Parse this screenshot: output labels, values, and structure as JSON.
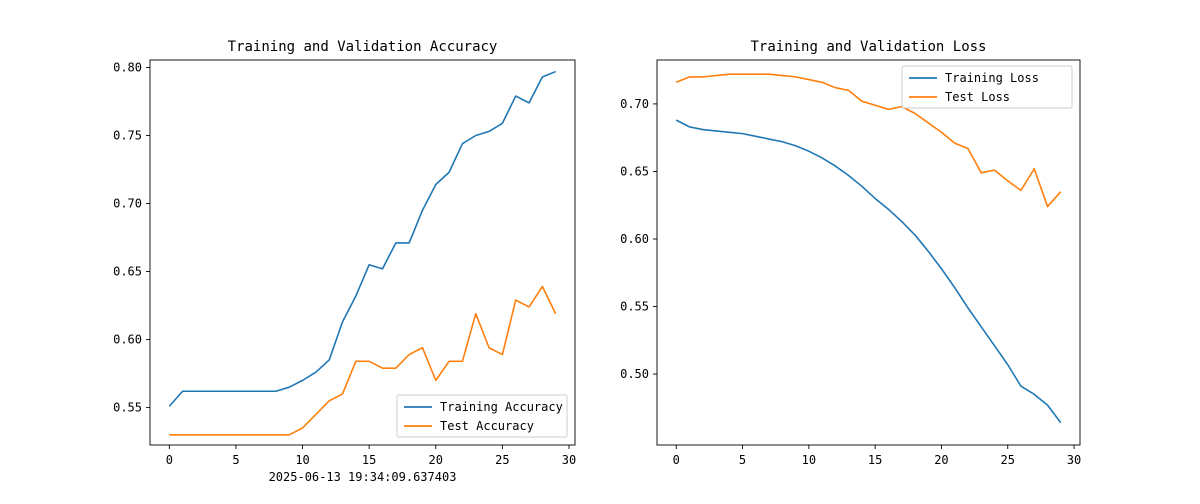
{
  "footer_text": "2025-06-13 19:34:09.637403",
  "chart_data": [
    {
      "type": "line",
      "title": "Training and Validation Accuracy",
      "xlim": [
        -1.45,
        30.45
      ],
      "ylim": [
        0.5225,
        0.8055
      ],
      "xticks": [
        0,
        5,
        10,
        15,
        20,
        25,
        30
      ],
      "yticks": [
        0.55,
        0.6,
        0.65,
        0.7,
        0.75,
        0.8
      ],
      "ytick_labels": [
        "0.55",
        "0.60",
        "0.65",
        "0.70",
        "0.75",
        "0.80"
      ],
      "grid": false,
      "legend_position": "lower-right",
      "series": [
        {
          "name": "Training Accuracy",
          "color": "#1f77b4",
          "x": [
            0,
            1,
            2,
            3,
            4,
            5,
            6,
            7,
            8,
            9,
            10,
            11,
            12,
            13,
            14,
            15,
            16,
            17,
            18,
            19,
            20,
            21,
            22,
            23,
            24,
            25,
            26,
            27,
            28,
            29
          ],
          "values": [
            0.551,
            0.562,
            0.562,
            0.562,
            0.562,
            0.562,
            0.562,
            0.562,
            0.562,
            0.565,
            0.57,
            0.576,
            0.585,
            0.613,
            0.632,
            0.655,
            0.652,
            0.671,
            0.671,
            0.695,
            0.714,
            0.723,
            0.744,
            0.75,
            0.753,
            0.759,
            0.779,
            0.774,
            0.793,
            0.797
          ]
        },
        {
          "name": "Test Accuracy",
          "color": "#ff7f0e",
          "x": [
            0,
            1,
            2,
            3,
            4,
            5,
            6,
            7,
            8,
            9,
            10,
            11,
            12,
            13,
            14,
            15,
            16,
            17,
            18,
            19,
            20,
            21,
            22,
            23,
            24,
            25,
            26,
            27,
            28,
            29
          ],
          "values": [
            0.53,
            0.53,
            0.53,
            0.53,
            0.53,
            0.53,
            0.53,
            0.53,
            0.53,
            0.53,
            0.535,
            0.545,
            0.555,
            0.56,
            0.584,
            0.584,
            0.579,
            0.579,
            0.589,
            0.594,
            0.57,
            0.584,
            0.584,
            0.619,
            0.594,
            0.589,
            0.629,
            0.624,
            0.639,
            0.619
          ]
        }
      ]
    },
    {
      "type": "line",
      "title": "Training and Validation Loss",
      "xlim": [
        -1.45,
        30.45
      ],
      "ylim": [
        0.4475,
        0.7325
      ],
      "xticks": [
        0,
        5,
        10,
        15,
        20,
        25,
        30
      ],
      "yticks": [
        0.5,
        0.55,
        0.6,
        0.65,
        0.7
      ],
      "ytick_labels": [
        "0.50",
        "0.55",
        "0.60",
        "0.65",
        "0.70"
      ],
      "grid": false,
      "legend_position": "upper-right",
      "series": [
        {
          "name": "Training Loss",
          "color": "#1f77b4",
          "x": [
            0,
            1,
            2,
            3,
            4,
            5,
            6,
            7,
            8,
            9,
            10,
            11,
            12,
            13,
            14,
            15,
            16,
            17,
            18,
            19,
            20,
            21,
            22,
            23,
            24,
            25,
            26,
            27,
            28,
            29
          ],
          "values": [
            0.688,
            0.683,
            0.681,
            0.68,
            0.679,
            0.678,
            0.676,
            0.674,
            0.672,
            0.669,
            0.665,
            0.66,
            0.654,
            0.647,
            0.639,
            0.63,
            0.622,
            0.613,
            0.603,
            0.591,
            0.578,
            0.564,
            0.549,
            0.535,
            0.521,
            0.507,
            0.491,
            0.485,
            0.477,
            0.464
          ]
        },
        {
          "name": "Test Loss",
          "color": "#ff7f0e",
          "x": [
            0,
            1,
            2,
            3,
            4,
            5,
            6,
            7,
            8,
            9,
            10,
            11,
            12,
            13,
            14,
            15,
            16,
            17,
            18,
            19,
            20,
            21,
            22,
            23,
            24,
            25,
            26,
            27,
            28,
            29
          ],
          "values": [
            0.716,
            0.72,
            0.72,
            0.721,
            0.722,
            0.722,
            0.722,
            0.722,
            0.721,
            0.72,
            0.718,
            0.716,
            0.712,
            0.71,
            0.702,
            0.699,
            0.696,
            0.698,
            0.693,
            0.686,
            0.679,
            0.671,
            0.667,
            0.649,
            0.651,
            0.643,
            0.636,
            0.652,
            0.624,
            0.635
          ]
        }
      ]
    }
  ]
}
